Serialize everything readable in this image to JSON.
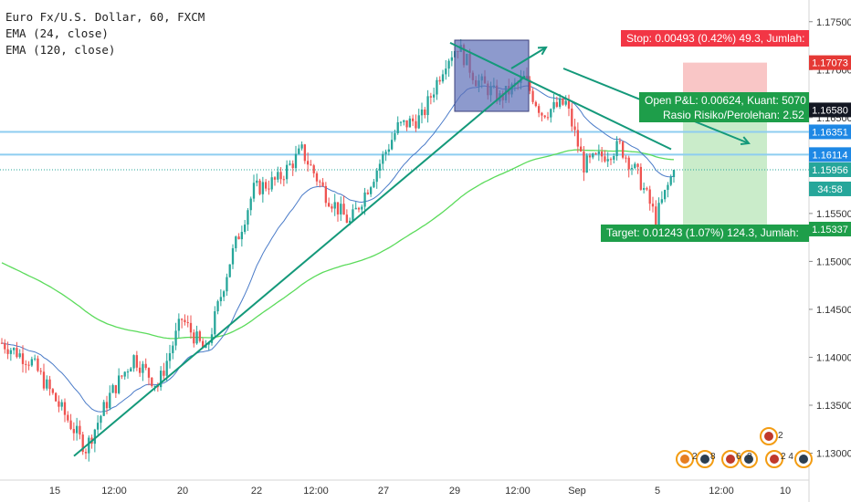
{
  "legend": {
    "symbol": "Euro Fx/U.S. Dollar, 60, FXCM",
    "ema_fast": "EMA (24, close)",
    "ema_slow": "EMA (120, close)"
  },
  "position": {
    "stop_label": "Stop: 0.00493 (0.42%) 49.3, Jumlah:",
    "pnl_label": "Open P&L: 0.00624, Kuant: 5070",
    "rr_label": "Rasio Risiko/Perolehan: 2.52",
    "target_label": "Target: 0.01243 (1.07%) 124.3, Jumlah:"
  },
  "price_axis": {
    "ticks": [
      "1.17500",
      "1.17000",
      "1.16500",
      "1.16000",
      "1.15500",
      "1.15000",
      "1.14500",
      "1.14000",
      "1.13500",
      "1.13000"
    ],
    "tags": [
      {
        "value": "1.17073",
        "color": "#e53935"
      },
      {
        "value": "1.16580",
        "color": "#131722"
      },
      {
        "value": "1.16351",
        "color": "#1e88e5"
      },
      {
        "value": "1.16114",
        "color": "#1e88e5"
      },
      {
        "value": "1.15956",
        "color": "#26a69a"
      },
      {
        "value": "34:58",
        "color": "#26a69a"
      },
      {
        "value": "1.15337",
        "color": "#1e9e4a"
      }
    ]
  },
  "time_axis": {
    "ticks": [
      "15",
      "12:00",
      "20",
      "22",
      "12:00",
      "27",
      "29",
      "12:00",
      "Sep",
      "5",
      "12:00",
      "10"
    ]
  },
  "events": [
    {
      "count": "2"
    },
    {
      "count": "2"
    },
    {
      "count": "8"
    },
    {
      "count": "6"
    },
    {
      "count": "2"
    },
    {
      "count": "2 4"
    }
  ],
  "colors": {
    "bull": "#26a69a",
    "bear": "#ef5350",
    "ema_fast": "#4a7bc8",
    "ema_slow": "#5bdb5b",
    "trend": "#14997a",
    "hline": "#8ecdf0",
    "stop_zone": "#f7b3b3",
    "target_zone": "#b8e6b8",
    "box": "#5c6fb8"
  },
  "chart_data": {
    "type": "candlestick",
    "title": "Euro Fx/U.S. Dollar, 60, FXCM",
    "ylim": [
      1.129,
      1.1765
    ],
    "x_ticks": [
      "15",
      "12:00",
      "20",
      "22",
      "12:00",
      "27",
      "29",
      "12:00",
      "Sep",
      "5",
      "12:00",
      "10"
    ],
    "anchors": [
      {
        "bar": 0,
        "price": 1.1415
      },
      {
        "bar": 10,
        "price": 1.1395
      },
      {
        "bar": 20,
        "price": 1.1345
      },
      {
        "bar": 28,
        "price": 1.1305
      },
      {
        "bar": 36,
        "price": 1.136
      },
      {
        "bar": 44,
        "price": 1.14
      },
      {
        "bar": 52,
        "price": 1.137
      },
      {
        "bar": 60,
        "price": 1.144
      },
      {
        "bar": 68,
        "price": 1.1405
      },
      {
        "bar": 76,
        "price": 1.15
      },
      {
        "bar": 84,
        "price": 1.1575
      },
      {
        "bar": 92,
        "price": 1.1585
      },
      {
        "bar": 100,
        "price": 1.1615
      },
      {
        "bar": 108,
        "price": 1.157
      },
      {
        "bar": 116,
        "price": 1.154
      },
      {
        "bar": 124,
        "price": 1.159
      },
      {
        "bar": 132,
        "price": 1.164
      },
      {
        "bar": 140,
        "price": 1.165
      },
      {
        "bar": 148,
        "price": 1.171
      },
      {
        "bar": 152,
        "price": 1.1725
      },
      {
        "bar": 158,
        "price": 1.169
      },
      {
        "bar": 166,
        "price": 1.167
      },
      {
        "bar": 174,
        "price": 1.169
      },
      {
        "bar": 180,
        "price": 1.1655
      },
      {
        "bar": 188,
        "price": 1.1665
      },
      {
        "bar": 194,
        "price": 1.16
      },
      {
        "bar": 200,
        "price": 1.161
      },
      {
        "bar": 206,
        "price": 1.162
      },
      {
        "bar": 212,
        "price": 1.159
      },
      {
        "bar": 218,
        "price": 1.1545
      },
      {
        "bar": 224,
        "price": 1.1595
      }
    ],
    "bar_count": 225,
    "series": [
      {
        "name": "EMA (24, close)"
      },
      {
        "name": "EMA (120, close)"
      }
    ],
    "levels": {
      "stop": 1.17073,
      "last": 1.1658,
      "h1": 1.16351,
      "h2": 1.16114,
      "close": 1.15956,
      "target": 1.15337
    },
    "grid": false
  }
}
